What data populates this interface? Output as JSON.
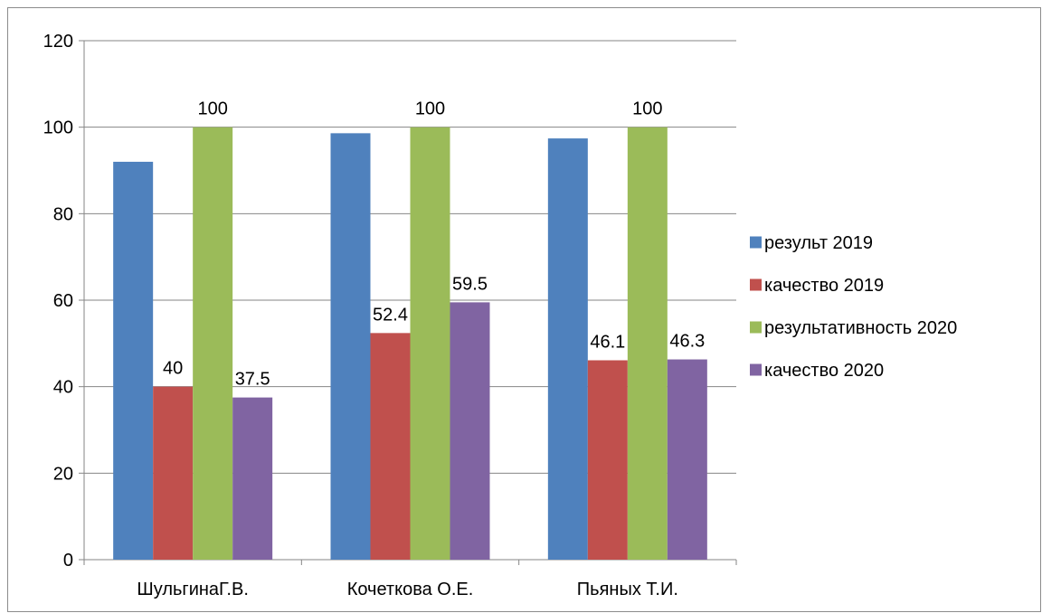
{
  "chart_data": {
    "type": "bar",
    "categories": [
      "ШульгинаГ.В.",
      "Кочеткова О.Е.",
      "Пьяных Т.И."
    ],
    "series": [
      {
        "name": "результ 2019",
        "color": "#4F81BD",
        "values": [
          92,
          98.6,
          97.4
        ],
        "data_labels": [
          null,
          null,
          null
        ]
      },
      {
        "name": "качество 2019",
        "color": "#C0504D",
        "values": [
          40,
          52.4,
          46.1
        ],
        "data_labels": [
          "40",
          "52.4",
          "46.1"
        ]
      },
      {
        "name": "результативность 2020",
        "color": "#9BBB59",
        "values": [
          100,
          100,
          100
        ],
        "data_labels": [
          "100",
          "100",
          "100"
        ]
      },
      {
        "name": "качество 2020",
        "color": "#8064A2",
        "values": [
          37.5,
          59.5,
          46.3
        ],
        "data_labels": [
          "37.5",
          "59.5",
          "46.3"
        ]
      }
    ],
    "ylim": [
      0,
      120
    ],
    "y_ticks": [
      "0",
      "20",
      "40",
      "60",
      "80",
      "100",
      "120"
    ],
    "grid": true,
    "legend_position": "right",
    "title": "",
    "xlabel": "",
    "ylabel": ""
  }
}
